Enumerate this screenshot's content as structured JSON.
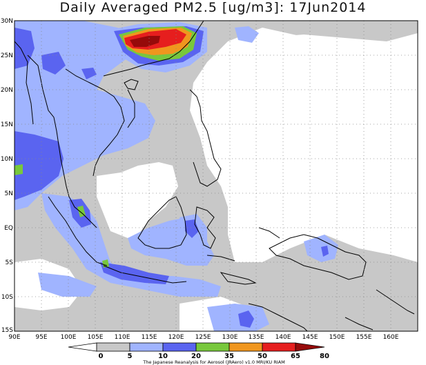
{
  "title": "Daily Averaged PM2.5 [ug/m3]: 17Jun2014",
  "lat_labels": [
    "30N",
    "25N",
    "20N",
    "15N",
    "10N",
    "5N",
    "EQ",
    "5S",
    "10S",
    "15S"
  ],
  "lon_labels": [
    "90E",
    "95E",
    "100E",
    "105E",
    "110E",
    "115E",
    "120E",
    "125E",
    "130E",
    "135E",
    "140E",
    "145E",
    "150E",
    "155E",
    "160E"
  ],
  "colorbar": {
    "levels": [
      "0",
      "5",
      "10",
      "20",
      "35",
      "50",
      "65",
      "80"
    ],
    "colors": [
      "#ffffff",
      "#c8c8c8",
      "#a0b4ff",
      "#5a64f0",
      "#78c83c",
      "#f0961e",
      "#e61e1e",
      "#960a0a"
    ]
  },
  "credit": "The Japanese Reanalysis for Aerosol (JRAero) v1.0 MRI/KU RIAM"
}
